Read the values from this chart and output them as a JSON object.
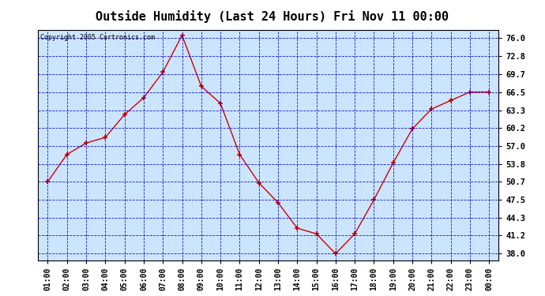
{
  "title": "Outside Humidity (Last 24 Hours) Fri Nov 11 00:00",
  "copyright": "Copyright 2005 Curtronics.com",
  "x_labels": [
    "01:00",
    "02:00",
    "03:00",
    "04:00",
    "05:00",
    "06:00",
    "07:00",
    "08:00",
    "09:00",
    "10:00",
    "11:00",
    "12:00",
    "13:00",
    "14:00",
    "15:00",
    "16:00",
    "17:00",
    "18:00",
    "19:00",
    "20:00",
    "21:00",
    "22:00",
    "23:00",
    "00:00"
  ],
  "y_values": [
    50.7,
    55.5,
    57.5,
    58.5,
    62.5,
    65.5,
    70.0,
    76.5,
    67.5,
    64.5,
    55.5,
    50.5,
    47.0,
    42.5,
    41.5,
    38.0,
    41.5,
    47.5,
    54.0,
    60.0,
    63.5,
    65.0,
    66.5,
    66.5
  ],
  "line_color": "#cc0000",
  "marker": "+",
  "background_color": "#cce5ff",
  "grid_color": "#0000cc",
  "title_fontsize": 11,
  "y_ticks": [
    38.0,
    41.2,
    44.3,
    47.5,
    50.7,
    53.8,
    57.0,
    60.2,
    63.3,
    66.5,
    69.7,
    72.8,
    76.0
  ],
  "ylim": [
    36.8,
    77.5
  ],
  "outer_bg": "#ffffff"
}
